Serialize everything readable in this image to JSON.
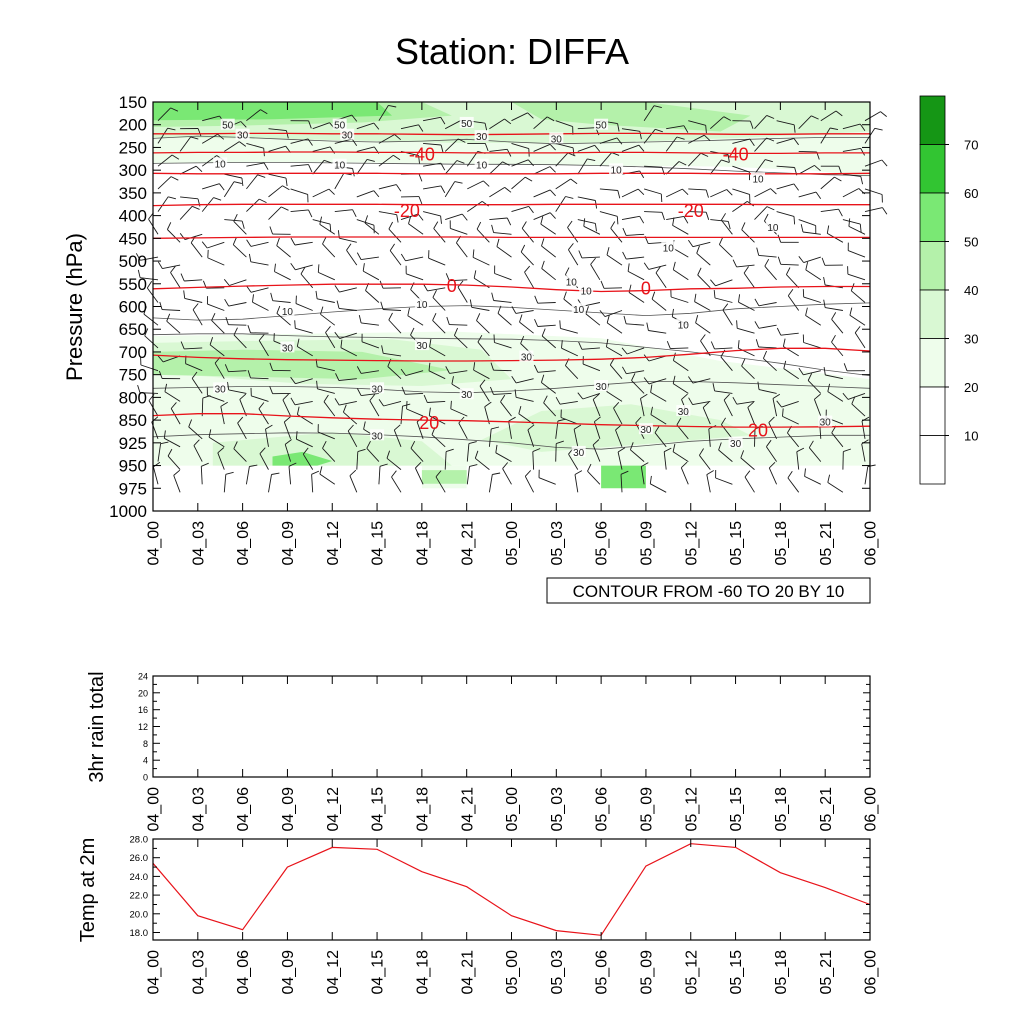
{
  "title": "Station: DIFFA",
  "colors": {
    "isotherm": "#e8131a",
    "temp_line": "#e8131a",
    "axis": "#000000",
    "wind_barb": "#1a1a1a",
    "humidity_contour": "#555555"
  },
  "chart_data": [
    {
      "id": "time-pressure-section",
      "type": "heatmap",
      "ylabel": "Pressure (hPa)",
      "pressure_levels": [
        "150",
        "200",
        "250",
        "300",
        "350",
        "400",
        "450",
        "500",
        "550",
        "600",
        "650",
        "700",
        "750",
        "800",
        "850",
        "925",
        "950",
        "975",
        "1000"
      ],
      "time_labels": [
        "04_00",
        "04_03",
        "04_06",
        "04_09",
        "04_12",
        "04_15",
        "04_18",
        "04_21",
        "05_00",
        "05_03",
        "05_06",
        "05_09",
        "05_12",
        "05_15",
        "05_18",
        "05_21",
        "06_00"
      ],
      "contour_caption": "CONTOUR FROM -60 TO 20 BY 10",
      "colorbar": {
        "labels": [
          "10",
          "20",
          "30",
          "40",
          "50",
          "60",
          "70"
        ],
        "bands": [
          {
            "range": [
              0,
              10
            ],
            "color": "#ffffff"
          },
          {
            "range": [
              10,
              20
            ],
            "color": "#ffffff"
          },
          {
            "range": [
              20,
              30
            ],
            "color": "#eefdeb"
          },
          {
            "range": [
              30,
              40
            ],
            "color": "#d9f8d3"
          },
          {
            "range": [
              40,
              50
            ],
            "color": "#b4f1aa"
          },
          {
            "range": [
              50,
              60
            ],
            "color": "#7ae874"
          },
          {
            "range": [
              60,
              70
            ],
            "color": "#32c532"
          },
          {
            "range": [
              70,
              80
            ],
            "color": "#159615"
          }
        ]
      },
      "isotherms": [
        {
          "value": -60,
          "label": "",
          "levels": [
            220,
            220,
            219,
            219,
            220,
            220,
            221,
            222,
            221,
            220,
            219,
            219,
            220,
            221,
            221,
            220,
            220
          ]
        },
        {
          "value": -50,
          "label": "",
          "levels": [
            262,
            261,
            261,
            260,
            260,
            261,
            261,
            262,
            262,
            262,
            261,
            261,
            262,
            263,
            263,
            262,
            262
          ]
        },
        {
          "value": -40,
          "label": "-40",
          "levels": [
            307,
            308,
            308,
            307,
            307,
            307,
            308,
            308,
            308,
            308,
            307,
            307,
            307,
            308,
            308,
            308,
            307
          ]
        },
        {
          "value": -30,
          "label": "",
          "levels": [
            378,
            376,
            375,
            375,
            375,
            375,
            376,
            376,
            376,
            375,
            375,
            375,
            375,
            375,
            376,
            376,
            376
          ]
        },
        {
          "value": -20,
          "label": "-20",
          "levels": [
            450,
            449,
            448,
            447,
            447,
            447,
            447,
            447,
            448,
            448,
            448,
            448,
            448,
            448,
            448,
            448,
            448
          ]
        },
        {
          "value": 0,
          "label": "0",
          "levels": [
            561,
            558,
            555,
            553,
            551,
            551,
            551,
            553,
            557,
            563,
            567,
            565,
            561,
            560,
            557,
            556,
            556
          ]
        },
        {
          "value": 10,
          "label": "",
          "levels": [
            707,
            712,
            715,
            717,
            718,
            719,
            720,
            720,
            719,
            718,
            716,
            712,
            705,
            697,
            692,
            692,
            698
          ]
        },
        {
          "value": 20,
          "label": "20",
          "levels": [
            840,
            836,
            836,
            841,
            845,
            848,
            850,
            852,
            856,
            860,
            865,
            868,
            871,
            873,
            873,
            872,
            870
          ]
        }
      ],
      "temperature_labels": [
        {
          "text": "-40",
          "time": 18,
          "p": 265
        },
        {
          "text": "-40",
          "time": 39,
          "p": 265
        },
        {
          "text": "-20",
          "time": 17,
          "p": 390
        },
        {
          "text": "-20",
          "time": 36,
          "p": 390
        },
        {
          "text": "0",
          "time": 20,
          "p": 555
        },
        {
          "text": "0",
          "time": 33,
          "p": 560
        },
        {
          "text": "20",
          "time": 18.5,
          "p": 860
        },
        {
          "text": "20",
          "time": 40.5,
          "p": 885
        }
      ],
      "humidity_labels": [
        {
          "text": "50",
          "time": 5,
          "p": 200
        },
        {
          "text": "50",
          "time": 12.5,
          "p": 200
        },
        {
          "text": "50",
          "time": 21,
          "p": 196
        },
        {
          "text": "50",
          "time": 30,
          "p": 200
        },
        {
          "text": "30",
          "time": 6,
          "p": 222
        },
        {
          "text": "30",
          "time": 13,
          "p": 222
        },
        {
          "text": "30",
          "time": 22,
          "p": 225
        },
        {
          "text": "30",
          "time": 27,
          "p": 230
        },
        {
          "text": "10",
          "time": 4.5,
          "p": 285
        },
        {
          "text": "10",
          "time": 12.5,
          "p": 288
        },
        {
          "text": "10",
          "time": 22,
          "p": 288
        },
        {
          "text": "10",
          "time": 31,
          "p": 298
        },
        {
          "text": "10",
          "time": 40.5,
          "p": 318
        },
        {
          "text": "10",
          "time": 41.5,
          "p": 425
        },
        {
          "text": "10",
          "time": 34.5,
          "p": 470
        },
        {
          "text": "10",
          "time": 28,
          "p": 545
        },
        {
          "text": "10",
          "time": 29,
          "p": 565
        },
        {
          "text": "10",
          "time": 28.5,
          "p": 605
        },
        {
          "text": "10",
          "time": 35.5,
          "p": 640
        },
        {
          "text": "10",
          "time": 18,
          "p": 595
        },
        {
          "text": "10",
          "time": 9,
          "p": 610
        },
        {
          "text": "30",
          "time": 9,
          "p": 690
        },
        {
          "text": "30",
          "time": 18,
          "p": 685
        },
        {
          "text": "30",
          "time": 25,
          "p": 710
        },
        {
          "text": "30",
          "time": 4.5,
          "p": 780
        },
        {
          "text": "30",
          "time": 15,
          "p": 780
        },
        {
          "text": "30",
          "time": 21,
          "p": 793
        },
        {
          "text": "30",
          "time": 30,
          "p": 775
        },
        {
          "text": "30",
          "time": 35.5,
          "p": 830
        },
        {
          "text": "30",
          "time": 33,
          "p": 880
        },
        {
          "text": "30",
          "time": 15,
          "p": 900
        },
        {
          "text": "30",
          "time": 28.5,
          "p": 935
        },
        {
          "text": "30",
          "time": 39,
          "p": 925
        },
        {
          "text": "30",
          "time": 45,
          "p": 855
        }
      ],
      "humidity_regions": [
        {
          "value": 25,
          "points": [
            [
              0,
              170
            ],
            [
              48,
              170
            ],
            [
              48,
              315
            ],
            [
              44,
              300
            ],
            [
              38,
              292
            ],
            [
              30,
              290
            ],
            [
              20,
              285
            ],
            [
              10,
              282
            ],
            [
              0,
              285
            ]
          ]
        },
        {
          "value": 25,
          "points": [
            [
              0,
              665
            ],
            [
              10,
              660
            ],
            [
              20,
              655
            ],
            [
              30,
              670
            ],
            [
              38,
              720
            ],
            [
              48,
              760
            ],
            [
              48,
              950
            ],
            [
              0,
              950
            ]
          ]
        },
        {
          "value": 25,
          "points": [
            [
              18,
              950
            ],
            [
              21,
              950
            ],
            [
              21,
              975
            ],
            [
              18,
              975
            ]
          ]
        },
        {
          "value": 35,
          "points": [
            [
              0,
              680
            ],
            [
              8,
              675
            ],
            [
              16,
              672
            ],
            [
              22,
              695
            ],
            [
              24,
              760
            ],
            [
              18,
              775
            ],
            [
              10,
              770
            ],
            [
              0,
              745
            ]
          ]
        },
        {
          "value": 35,
          "points": [
            [
              26,
              830
            ],
            [
              32,
              815
            ],
            [
              38,
              850
            ],
            [
              40,
              900
            ],
            [
              34,
              925
            ],
            [
              26,
              935
            ],
            [
              22,
              915
            ]
          ]
        },
        {
          "value": 35,
          "points": [
            [
              4,
              925
            ],
            [
              12,
              890
            ],
            [
              18,
              920
            ],
            [
              20,
              950
            ],
            [
              4,
              950
            ]
          ]
        },
        {
          "value": 35,
          "points": [
            [
              0,
              150
            ],
            [
              48,
              150
            ],
            [
              48,
              215
            ],
            [
              40,
              228
            ],
            [
              30,
              240
            ],
            [
              20,
              240
            ],
            [
              10,
              232
            ],
            [
              0,
              228
            ]
          ]
        },
        {
          "value": 45,
          "points": [
            [
              0,
              700
            ],
            [
              6,
              695
            ],
            [
              14,
              700
            ],
            [
              20,
              740
            ],
            [
              14,
              760
            ],
            [
              0,
              750
            ]
          ]
        },
        {
          "value": 45,
          "points": [
            [
              0,
              150
            ],
            [
              18,
              150
            ],
            [
              20,
              180
            ],
            [
              14,
              195
            ],
            [
              6,
              202
            ],
            [
              0,
              205
            ]
          ]
        },
        {
          "value": 45,
          "points": [
            [
              24,
              150
            ],
            [
              33,
              150
            ],
            [
              40,
              180
            ],
            [
              38,
              215
            ],
            [
              30,
              200
            ],
            [
              26,
              188
            ]
          ]
        },
        {
          "value": 45,
          "points": [
            [
              18,
              955
            ],
            [
              21,
              955
            ],
            [
              21,
              970
            ],
            [
              18,
              970
            ]
          ]
        },
        {
          "value": 55,
          "points": [
            [
              0,
              150
            ],
            [
              15,
              150
            ],
            [
              16,
              180
            ],
            [
              8,
              188
            ],
            [
              0,
              190
            ]
          ]
        },
        {
          "value": 55,
          "points": [
            [
              30,
              950
            ],
            [
              33,
              950
            ],
            [
              33,
              975
            ],
            [
              30,
              975
            ]
          ]
        },
        {
          "value": 55,
          "points": [
            [
              8,
              940
            ],
            [
              10,
              935
            ],
            [
              12,
              945
            ],
            [
              11,
              950
            ],
            [
              8,
              950
            ]
          ]
        }
      ],
      "humidity_contour_lines": [
        {
          "levels": [
            230,
            225,
            228,
            232,
            236,
            238,
            236,
            232,
            238,
            242,
            240,
            238,
            236,
            233,
            230,
            228,
            228
          ]
        },
        {
          "levels": [
            285,
            284,
            283,
            283,
            284,
            285,
            286,
            287,
            287,
            288,
            290,
            293,
            297,
            302,
            306,
            310,
            312
          ]
        },
        {
          "levels": [
            625,
            630,
            628,
            620,
            612,
            605,
            600,
            598,
            602,
            608,
            614,
            620,
            615,
            605,
            600,
            595,
            592
          ]
        },
        {
          "levels": [
            662,
            660,
            660,
            664,
            667,
            668,
            670,
            671,
            672,
            675,
            680,
            690,
            700,
            712,
            725,
            740,
            752
          ]
        },
        {
          "levels": [
            780,
            778,
            776,
            776,
            778,
            782,
            788,
            790,
            786,
            780,
            772,
            765,
            765,
            768,
            772,
            776,
            780
          ]
        },
        {
          "levels": [
            905,
            898,
            895,
            892,
            893,
            898,
            905,
            915,
            925,
            930,
            932,
            928,
            920,
            912,
            906,
            900,
            900
          ]
        }
      ],
      "wind_barb_count": {
        "columns": 33,
        "rows": 19
      }
    },
    {
      "id": "rain-panel",
      "type": "line",
      "ylabel": "3hr rain total",
      "yticks": [
        "0",
        "4",
        "8",
        "12",
        "16",
        "20",
        "24"
      ],
      "ylim": [
        0,
        24
      ],
      "x": [
        0,
        3,
        6,
        9,
        12,
        15,
        18,
        21,
        24,
        27,
        30,
        33,
        36,
        39,
        42,
        45,
        48
      ],
      "values": [
        0,
        0,
        0,
        0,
        0,
        0,
        0,
        0,
        0,
        0,
        0,
        0,
        0,
        0,
        0,
        0,
        0
      ],
      "time_labels": [
        "04_00",
        "04_03",
        "04_06",
        "04_09",
        "04_12",
        "04_15",
        "04_18",
        "04_21",
        "05_00",
        "05_03",
        "05_06",
        "05_09",
        "05_12",
        "05_15",
        "05_18",
        "05_21",
        "06_00"
      ]
    },
    {
      "id": "temp-panel",
      "type": "line",
      "ylabel": "Temp at 2m",
      "yticks": [
        "18.0",
        "20.0",
        "22.0",
        "24.0",
        "26.0",
        "28.0"
      ],
      "ylim": [
        17.2,
        28.0
      ],
      "x": [
        0,
        3,
        6,
        9,
        12,
        15,
        18,
        21,
        24,
        27,
        30,
        33,
        36,
        39,
        42,
        45,
        48
      ],
      "values": [
        25.4,
        19.8,
        18.3,
        25.0,
        27.1,
        26.9,
        24.5,
        22.9,
        19.8,
        18.2,
        17.7,
        25.1,
        27.5,
        27.1,
        24.4,
        22.8,
        21.0
      ],
      "time_labels": [
        "04_00",
        "04_03",
        "04_06",
        "04_09",
        "04_12",
        "04_15",
        "04_18",
        "04_21",
        "05_00",
        "05_03",
        "05_06",
        "05_09",
        "05_12",
        "05_15",
        "05_18",
        "05_21",
        "06_00"
      ]
    }
  ]
}
